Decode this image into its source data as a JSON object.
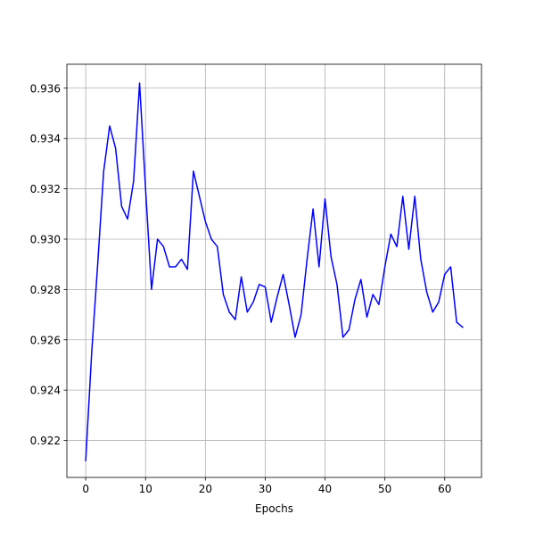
{
  "chart_data": {
    "type": "line",
    "title": "",
    "xlabel": "Epochs",
    "ylabel": "",
    "grid": true,
    "xlim": [
      -3.15,
      66.15
    ],
    "ylim": [
      0.92053,
      0.93695
    ],
    "xticks": [
      0,
      10,
      20,
      30,
      40,
      50,
      60
    ],
    "xtick_labels": [
      "0",
      "10",
      "20",
      "30",
      "40",
      "50",
      "60"
    ],
    "yticks": [
      0.922,
      0.924,
      0.926,
      0.928,
      0.93,
      0.932,
      0.934,
      0.936
    ],
    "ytick_labels": [
      "0.922",
      "0.924",
      "0.926",
      "0.928",
      "0.930",
      "0.932",
      "0.934",
      "0.936"
    ],
    "series": [
      {
        "color": "#0000ff",
        "x": [
          0,
          1,
          2,
          3,
          4,
          5,
          6,
          7,
          8,
          9,
          10,
          11,
          12,
          13,
          14,
          15,
          16,
          17,
          18,
          19,
          20,
          21,
          22,
          23,
          24,
          25,
          26,
          27,
          28,
          29,
          30,
          31,
          32,
          33,
          34,
          35,
          36,
          37,
          38,
          39,
          40,
          41,
          42,
          43,
          44,
          45,
          46,
          47,
          48,
          49,
          50,
          51,
          52,
          53,
          54,
          55,
          56,
          57,
          58,
          59,
          60,
          61,
          62,
          63
        ],
        "values": [
          0.9212,
          0.9255,
          0.929,
          0.9327,
          0.9345,
          0.9336,
          0.9313,
          0.9308,
          0.9323,
          0.9362,
          0.932,
          0.928,
          0.93,
          0.9297,
          0.9289,
          0.9289,
          0.9292,
          0.9288,
          0.9327,
          0.9317,
          0.9307,
          0.93,
          0.9297,
          0.9278,
          0.9271,
          0.9268,
          0.9285,
          0.9271,
          0.9275,
          0.9282,
          0.9281,
          0.9267,
          0.9277,
          0.9286,
          0.9274,
          0.9261,
          0.927,
          0.9292,
          0.9312,
          0.9289,
          0.9316,
          0.9293,
          0.9282,
          0.9261,
          0.9264,
          0.9276,
          0.9284,
          0.9269,
          0.9278,
          0.9274,
          0.9289,
          0.9302,
          0.9297,
          0.9317,
          0.9296,
          0.9317,
          0.9292,
          0.9279,
          0.9271,
          0.9275,
          0.9286,
          0.9289,
          0.9267,
          0.9265
        ]
      }
    ]
  }
}
